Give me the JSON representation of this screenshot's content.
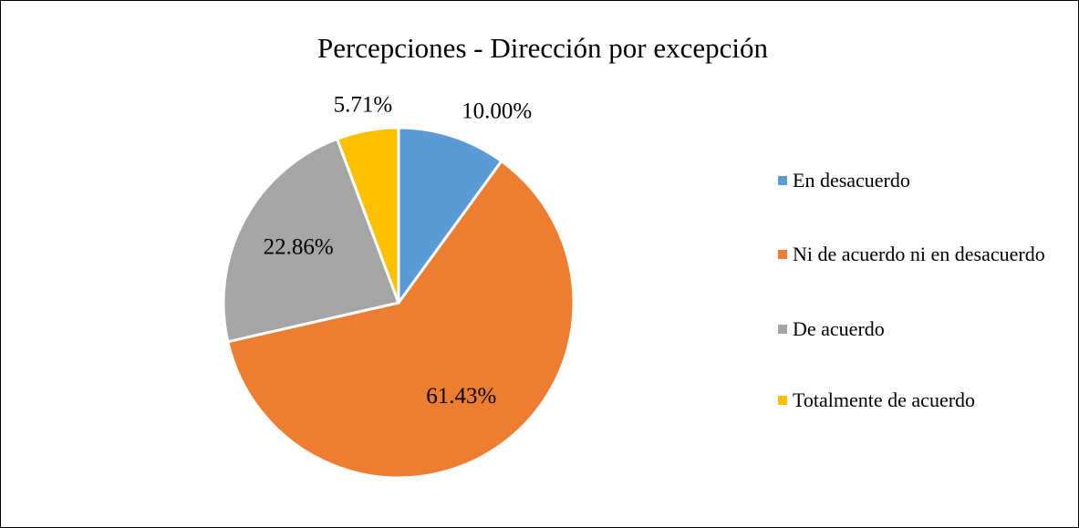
{
  "chart_data": {
    "type": "pie",
    "title": "Percepciones - Dirección por excepción",
    "categories": [
      "En desacuerdo",
      "Ni de acuerdo ni en desacuerdo",
      "De acuerdo",
      "Totalmente de acuerdo"
    ],
    "values": [
      10,
      61.43,
      22.86,
      5.71
    ],
    "value_labels": [
      "10.00%",
      "61.43%",
      "22.86%",
      "5.71%"
    ],
    "colors": [
      "#5b9bd5",
      "#ed7d31",
      "#a5a5a5",
      "#ffc000"
    ],
    "legend": "right"
  }
}
